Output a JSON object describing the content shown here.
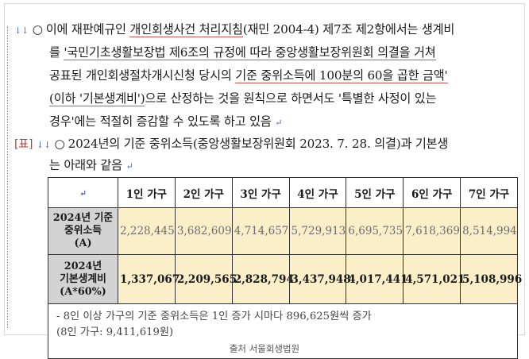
{
  "paragraph1": {
    "lines": [
      {
        "parts": [
          "이에 재판예규인 ",
          "개인회생사건 처리지침",
          "(재민 2004-4) 제7조 제2항에서는 생계비"
        ]
      },
      {
        "parts": [
          "를 ",
          "'국민기초생활보장법 제6조의 규정에 따라 중앙생활보장위원회 의결을 거쳐",
          ""
        ]
      },
      {
        "parts": [
          "공표된 개인회생절차개시신청 당시의 ",
          "기준 중위소득에 100분의 60을 곱한 금액'",
          ""
        ]
      },
      {
        "parts": [
          "(이하 '기본생계비')",
          "으로 산정하는 것을 원칙으로 하면서도 '특별한 사정이 있는",
          ""
        ]
      },
      {
        "parts": [
          "경우'에는 적절히 증감할 수 있도록 하고 있음",
          "",
          ""
        ]
      }
    ]
  },
  "table_label": "[표]",
  "paragraph2": {
    "line1": "2024년의 기준 중위소득(중앙생활보장위원회 2023. 7. 28. 의결)과 기본생",
    "line2": "는 아래와 같음"
  },
  "table": {
    "headers": [
      "1인 가구",
      "2인 가구",
      "3인 가구",
      "4인 가구",
      "5인 가구",
      "6인 가구",
      "7인 가구"
    ],
    "rows": [
      {
        "label_lines": [
          "2024년 기준",
          "중위소득",
          "(A)"
        ],
        "values": [
          "2,228,445",
          "3,682,609",
          "4,714,657",
          "5,729,913",
          "6,695,735",
          "7,618,369",
          "8,514,994"
        ]
      },
      {
        "label_lines": [
          "2024년",
          "기본생계비",
          "(A*60%)"
        ],
        "values": [
          "1,337,067",
          "2,209,565",
          "2,828,794",
          "3,437,948",
          "4,017,441",
          "4,571,021",
          "5,108,996"
        ]
      }
    ],
    "notes": [
      "- 8인 이상 가구의 기준 중위소득은 1인 증가 시마다 896,625원씩 증가",
      "(8인 가구: 9,411,619원)"
    ]
  },
  "caption": "출처 서울회생법원",
  "colors": {
    "highlight": "#fbefc9",
    "header_gray": "#d3d3d3",
    "underline": "#d9534f"
  }
}
